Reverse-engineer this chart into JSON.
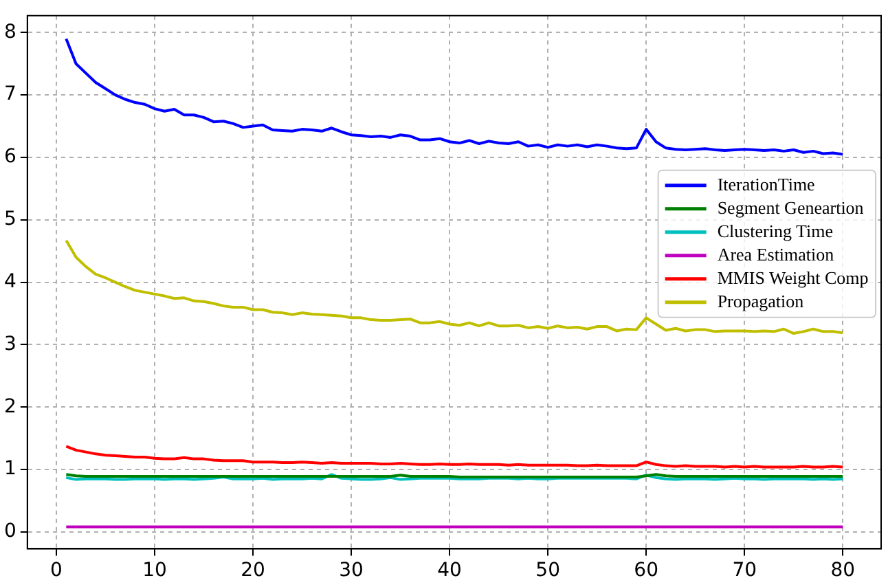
{
  "chart_data": {
    "type": "line",
    "x": [
      1,
      2,
      3,
      4,
      5,
      6,
      7,
      8,
      9,
      10,
      11,
      12,
      13,
      14,
      15,
      16,
      17,
      18,
      19,
      20,
      21,
      22,
      23,
      24,
      25,
      26,
      27,
      28,
      29,
      30,
      31,
      32,
      33,
      34,
      35,
      36,
      37,
      38,
      39,
      40,
      41,
      42,
      43,
      44,
      45,
      46,
      47,
      48,
      49,
      50,
      51,
      52,
      53,
      54,
      55,
      56,
      57,
      58,
      59,
      60,
      61,
      62,
      63,
      64,
      65,
      66,
      67,
      68,
      69,
      70,
      71,
      72,
      73,
      74,
      75,
      76,
      77,
      78,
      79,
      80
    ],
    "series": [
      {
        "name": "IterationTime",
        "color": "#0000ff",
        "values": [
          7.9,
          7.5,
          7.35,
          7.2,
          7.1,
          7.0,
          6.93,
          6.88,
          6.85,
          6.78,
          6.74,
          6.77,
          6.68,
          6.68,
          6.64,
          6.57,
          6.58,
          6.54,
          6.48,
          6.5,
          6.52,
          6.44,
          6.43,
          6.42,
          6.45,
          6.44,
          6.42,
          6.47,
          6.41,
          6.36,
          6.35,
          6.33,
          6.34,
          6.32,
          6.36,
          6.34,
          6.28,
          6.28,
          6.3,
          6.25,
          6.23,
          6.27,
          6.22,
          6.26,
          6.23,
          6.22,
          6.25,
          6.18,
          6.2,
          6.16,
          6.2,
          6.18,
          6.2,
          6.17,
          6.2,
          6.18,
          6.15,
          6.14,
          6.15,
          6.45,
          6.25,
          6.15,
          6.13,
          6.12,
          6.13,
          6.14,
          6.12,
          6.11,
          6.12,
          6.13,
          6.12,
          6.11,
          6.12,
          6.1,
          6.12,
          6.08,
          6.1,
          6.06,
          6.07,
          6.05
        ]
      },
      {
        "name": "Segment Geneartion",
        "color": "#008000",
        "values": [
          0.92,
          0.9,
          0.89,
          0.89,
          0.89,
          0.89,
          0.89,
          0.89,
          0.89,
          0.89,
          0.89,
          0.89,
          0.89,
          0.89,
          0.89,
          0.89,
          0.89,
          0.89,
          0.89,
          0.89,
          0.89,
          0.89,
          0.89,
          0.89,
          0.89,
          0.89,
          0.89,
          0.89,
          0.89,
          0.89,
          0.89,
          0.89,
          0.89,
          0.89,
          0.91,
          0.89,
          0.89,
          0.89,
          0.89,
          0.89,
          0.88,
          0.88,
          0.88,
          0.88,
          0.88,
          0.88,
          0.88,
          0.88,
          0.88,
          0.88,
          0.88,
          0.88,
          0.88,
          0.88,
          0.88,
          0.88,
          0.88,
          0.88,
          0.88,
          0.9,
          0.92,
          0.9,
          0.89,
          0.89,
          0.89,
          0.89,
          0.89,
          0.89,
          0.89,
          0.89,
          0.89,
          0.89,
          0.89,
          0.89,
          0.89,
          0.89,
          0.89,
          0.89,
          0.89,
          0.89
        ]
      },
      {
        "name": "Clustering Time",
        "color": "#00bfbf",
        "values": [
          0.87,
          0.84,
          0.85,
          0.85,
          0.85,
          0.84,
          0.84,
          0.85,
          0.85,
          0.85,
          0.84,
          0.85,
          0.85,
          0.84,
          0.85,
          0.86,
          0.88,
          0.85,
          0.85,
          0.85,
          0.86,
          0.84,
          0.85,
          0.85,
          0.85,
          0.86,
          0.85,
          0.92,
          0.86,
          0.85,
          0.84,
          0.84,
          0.85,
          0.87,
          0.84,
          0.85,
          0.86,
          0.86,
          0.86,
          0.86,
          0.85,
          0.85,
          0.85,
          0.86,
          0.86,
          0.86,
          0.85,
          0.86,
          0.85,
          0.85,
          0.86,
          0.86,
          0.86,
          0.86,
          0.86,
          0.86,
          0.86,
          0.86,
          0.85,
          0.91,
          0.87,
          0.85,
          0.84,
          0.85,
          0.85,
          0.85,
          0.84,
          0.85,
          0.86,
          0.85,
          0.85,
          0.84,
          0.85,
          0.85,
          0.85,
          0.85,
          0.84,
          0.85,
          0.84,
          0.85
        ]
      },
      {
        "name": "Area Estimation",
        "color": "#bf00bf",
        "values": [
          0.08,
          0.08,
          0.08,
          0.08,
          0.08,
          0.08,
          0.08,
          0.08,
          0.08,
          0.08,
          0.08,
          0.08,
          0.08,
          0.08,
          0.08,
          0.08,
          0.08,
          0.08,
          0.08,
          0.08,
          0.08,
          0.08,
          0.08,
          0.08,
          0.08,
          0.08,
          0.08,
          0.08,
          0.08,
          0.08,
          0.08,
          0.08,
          0.08,
          0.08,
          0.08,
          0.08,
          0.08,
          0.08,
          0.08,
          0.08,
          0.08,
          0.08,
          0.08,
          0.08,
          0.08,
          0.08,
          0.08,
          0.08,
          0.08,
          0.08,
          0.08,
          0.08,
          0.08,
          0.08,
          0.08,
          0.08,
          0.08,
          0.08,
          0.08,
          0.08,
          0.08,
          0.08,
          0.08,
          0.08,
          0.08,
          0.08,
          0.08,
          0.08,
          0.08,
          0.08,
          0.08,
          0.08,
          0.08,
          0.08,
          0.08,
          0.08,
          0.08,
          0.08,
          0.08,
          0.08
        ]
      },
      {
        "name": "MMIS Weight Comp",
        "color": "#ff0000",
        "values": [
          1.37,
          1.31,
          1.28,
          1.25,
          1.23,
          1.22,
          1.21,
          1.2,
          1.2,
          1.18,
          1.17,
          1.17,
          1.19,
          1.17,
          1.17,
          1.15,
          1.14,
          1.14,
          1.14,
          1.12,
          1.12,
          1.12,
          1.11,
          1.11,
          1.12,
          1.11,
          1.1,
          1.11,
          1.1,
          1.1,
          1.1,
          1.1,
          1.09,
          1.09,
          1.1,
          1.09,
          1.08,
          1.08,
          1.09,
          1.08,
          1.08,
          1.09,
          1.08,
          1.08,
          1.08,
          1.07,
          1.08,
          1.07,
          1.07,
          1.07,
          1.07,
          1.07,
          1.06,
          1.06,
          1.07,
          1.06,
          1.06,
          1.06,
          1.06,
          1.12,
          1.08,
          1.06,
          1.05,
          1.06,
          1.05,
          1.05,
          1.05,
          1.04,
          1.05,
          1.04,
          1.05,
          1.04,
          1.04,
          1.04,
          1.04,
          1.05,
          1.04,
          1.04,
          1.05,
          1.04
        ]
      },
      {
        "name": "Propagation",
        "color": "#bfbf00",
        "values": [
          4.67,
          4.4,
          4.25,
          4.13,
          4.07,
          4.0,
          3.93,
          3.87,
          3.84,
          3.81,
          3.78,
          3.74,
          3.75,
          3.7,
          3.69,
          3.66,
          3.62,
          3.6,
          3.6,
          3.56,
          3.56,
          3.52,
          3.51,
          3.48,
          3.51,
          3.49,
          3.48,
          3.47,
          3.46,
          3.43,
          3.43,
          3.4,
          3.39,
          3.39,
          3.4,
          3.41,
          3.35,
          3.35,
          3.37,
          3.33,
          3.31,
          3.35,
          3.3,
          3.35,
          3.3,
          3.3,
          3.31,
          3.27,
          3.29,
          3.26,
          3.3,
          3.27,
          3.28,
          3.25,
          3.29,
          3.29,
          3.22,
          3.25,
          3.24,
          3.43,
          3.33,
          3.23,
          3.26,
          3.22,
          3.24,
          3.24,
          3.21,
          3.22,
          3.22,
          3.22,
          3.21,
          3.22,
          3.21,
          3.25,
          3.18,
          3.21,
          3.25,
          3.21,
          3.21,
          3.19
        ]
      }
    ],
    "xlim": [
      -2.95,
      83.9
    ],
    "xticks": [
      0,
      10,
      20,
      30,
      40,
      50,
      60,
      70,
      80
    ],
    "ylim": [
      -0.27,
      8.27
    ],
    "yticks": [
      0,
      1,
      2,
      3,
      4,
      5,
      6,
      7,
      8
    ],
    "grid": true,
    "legend": "right",
    "marker": "none",
    "line_style": "solid"
  }
}
